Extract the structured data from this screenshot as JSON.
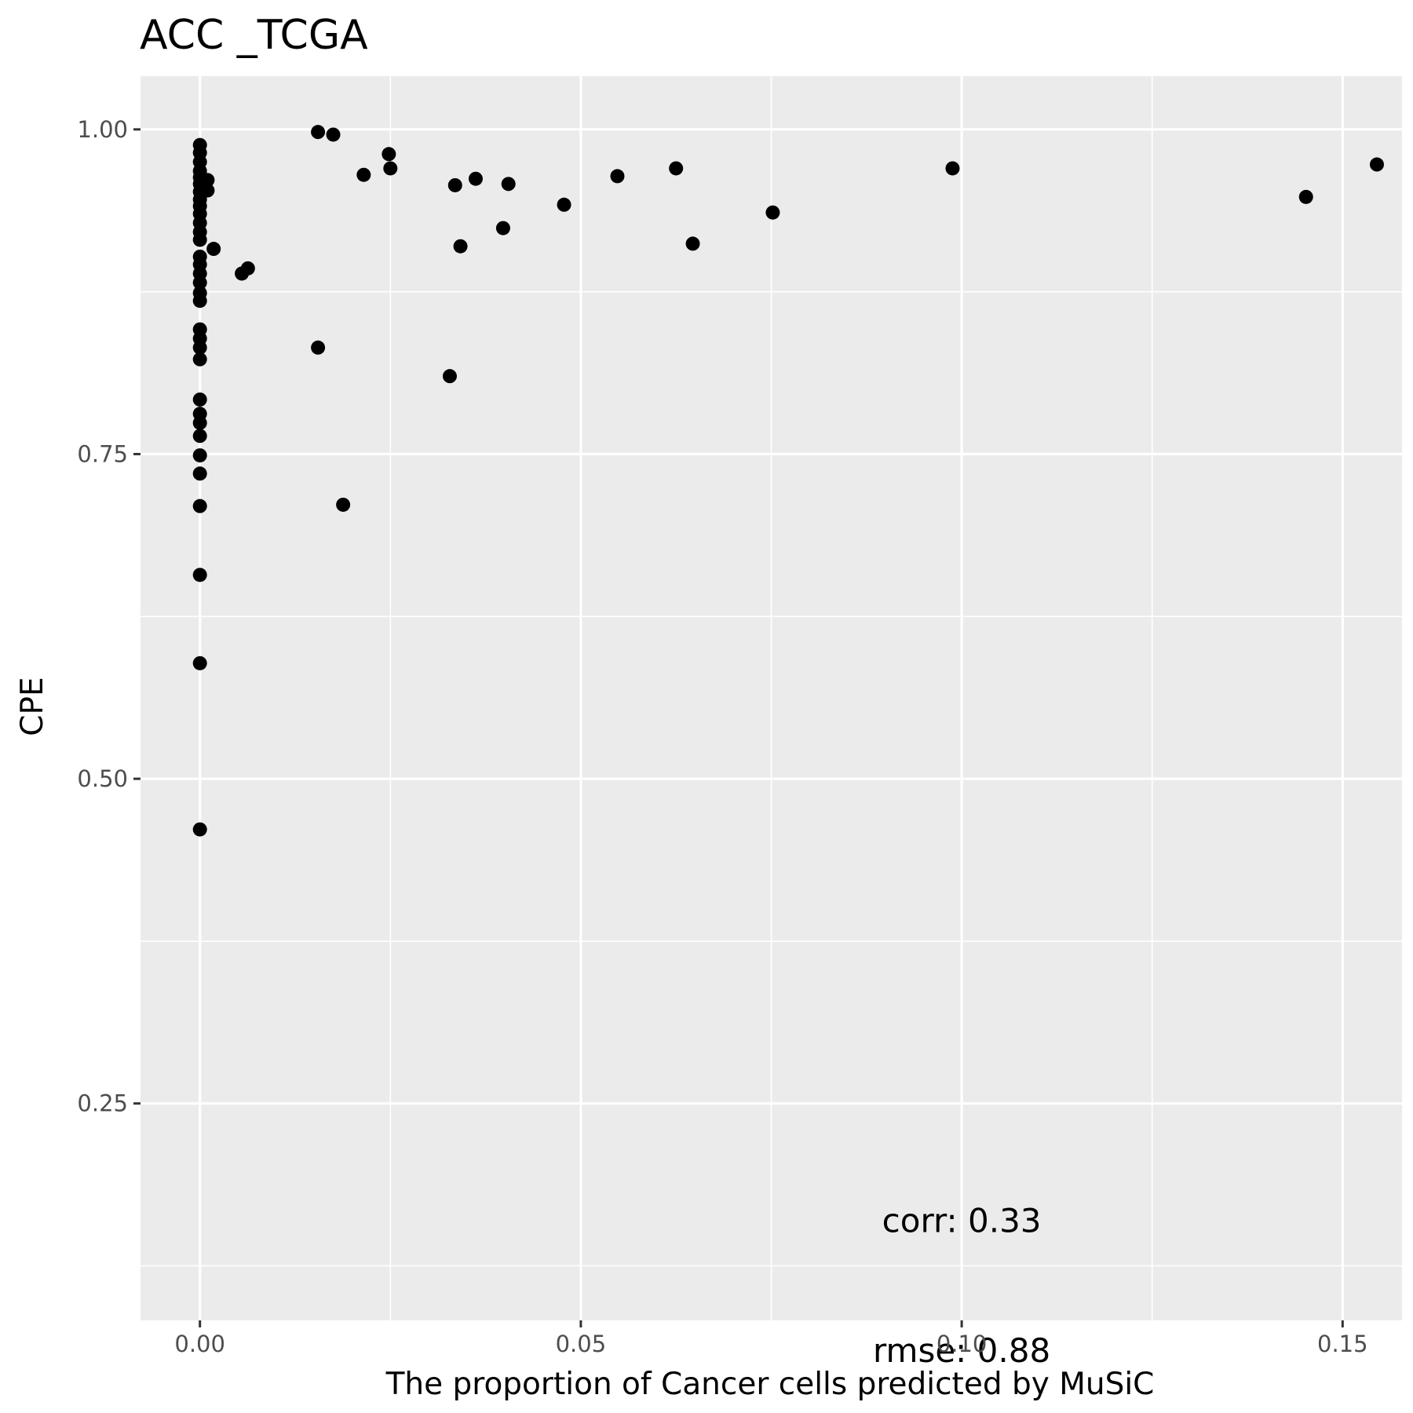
{
  "chart_data": {
    "type": "scatter",
    "title": "ACC _TCGA",
    "xlabel": "The proportion of Cancer cells predicted by MuSiC",
    "ylabel": "CPE",
    "xlim": [
      -0.0078,
      0.1578
    ],
    "ylim": [
      0.083,
      1.041
    ],
    "x_ticks": [
      0.0,
      0.05,
      0.1,
      0.15
    ],
    "x_tick_labels": [
      "0.00",
      "0.05",
      "0.10",
      "0.15"
    ],
    "x_minor_ticks": [
      0.025,
      0.075,
      0.125
    ],
    "y_ticks": [
      0.25,
      0.5,
      0.75,
      1.0
    ],
    "y_tick_labels": [
      "0.25",
      "0.50",
      "0.75",
      "1.00"
    ],
    "y_minor_ticks": [
      0.125,
      0.375,
      0.625,
      0.875
    ],
    "grid": true,
    "point_color": "#000000",
    "panel_color": "#ebebeb",
    "grid_color": "#ffffff",
    "annotations": [
      {
        "text": "corr: 0.33",
        "x": 0.1,
        "y": 0.16
      },
      {
        "text": "rmse: 0.88",
        "x": 0.1,
        "y": 0.06
      }
    ],
    "points": [
      {
        "x": 0.0,
        "y": 0.988
      },
      {
        "x": 0.0,
        "y": 0.982
      },
      {
        "x": 0.0,
        "y": 0.975
      },
      {
        "x": 0.0,
        "y": 0.968
      },
      {
        "x": 0.0,
        "y": 0.963
      },
      {
        "x": 0.0,
        "y": 0.958
      },
      {
        "x": 0.0,
        "y": 0.952
      },
      {
        "x": 0.0,
        "y": 0.946
      },
      {
        "x": 0.0,
        "y": 0.941
      },
      {
        "x": 0.0,
        "y": 0.935
      },
      {
        "x": 0.0,
        "y": 0.928
      },
      {
        "x": 0.0,
        "y": 0.921
      },
      {
        "x": 0.0,
        "y": 0.915
      },
      {
        "x": 0.0,
        "y": 0.902
      },
      {
        "x": 0.0,
        "y": 0.896
      },
      {
        "x": 0.0,
        "y": 0.889
      },
      {
        "x": 0.0,
        "y": 0.882
      },
      {
        "x": 0.0,
        "y": 0.874
      },
      {
        "x": 0.0,
        "y": 0.868
      },
      {
        "x": 0.0,
        "y": 0.846
      },
      {
        "x": 0.0,
        "y": 0.839
      },
      {
        "x": 0.0,
        "y": 0.832
      },
      {
        "x": 0.0,
        "y": 0.823
      },
      {
        "x": 0.0,
        "y": 0.792
      },
      {
        "x": 0.0,
        "y": 0.781
      },
      {
        "x": 0.0,
        "y": 0.774
      },
      {
        "x": 0.0,
        "y": 0.764
      },
      {
        "x": 0.0,
        "y": 0.749
      },
      {
        "x": 0.0,
        "y": 0.735
      },
      {
        "x": 0.0,
        "y": 0.71
      },
      {
        "x": 0.0,
        "y": 0.657
      },
      {
        "x": 0.0,
        "y": 0.589
      },
      {
        "x": 0.0,
        "y": 0.461
      },
      {
        "x": 0.001,
        "y": 0.961
      },
      {
        "x": 0.001,
        "y": 0.953
      },
      {
        "x": 0.0018,
        "y": 0.908
      },
      {
        "x": 0.0055,
        "y": 0.889
      },
      {
        "x": 0.0063,
        "y": 0.893
      },
      {
        "x": 0.0155,
        "y": 0.998
      },
      {
        "x": 0.0155,
        "y": 0.832
      },
      {
        "x": 0.0175,
        "y": 0.996
      },
      {
        "x": 0.0188,
        "y": 0.711
      },
      {
        "x": 0.0215,
        "y": 0.965
      },
      {
        "x": 0.0248,
        "y": 0.981
      },
      {
        "x": 0.025,
        "y": 0.97
      },
      {
        "x": 0.0328,
        "y": 0.81
      },
      {
        "x": 0.0335,
        "y": 0.957
      },
      {
        "x": 0.0342,
        "y": 0.91
      },
      {
        "x": 0.0362,
        "y": 0.962
      },
      {
        "x": 0.0398,
        "y": 0.924
      },
      {
        "x": 0.0405,
        "y": 0.958
      },
      {
        "x": 0.0478,
        "y": 0.942
      },
      {
        "x": 0.0548,
        "y": 0.964
      },
      {
        "x": 0.0625,
        "y": 0.97
      },
      {
        "x": 0.0647,
        "y": 0.912
      },
      {
        "x": 0.0752,
        "y": 0.936
      },
      {
        "x": 0.0988,
        "y": 0.97
      },
      {
        "x": 0.1452,
        "y": 0.948
      },
      {
        "x": 0.1545,
        "y": 0.973
      }
    ]
  }
}
